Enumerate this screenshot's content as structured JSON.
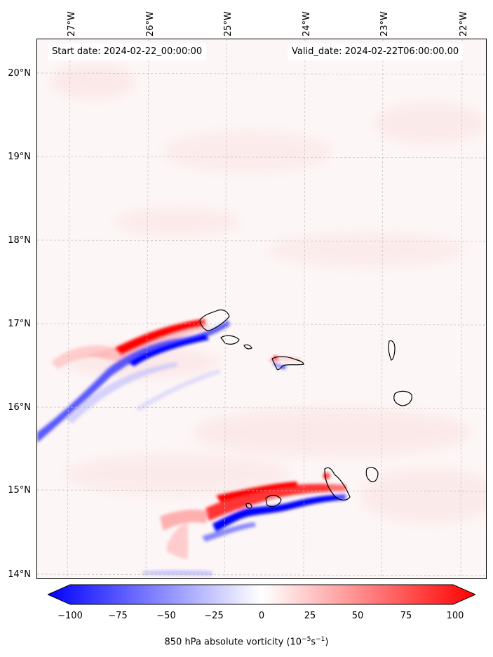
{
  "map": {
    "start_date_text": "Start date: 2024-02-22_00:00:00",
    "valid_date_text": "Valid_date: 2024-02-22T06:00:00.00",
    "longitude_labels": [
      "27°W",
      "26°W",
      "25°W",
      "24°W",
      "23°W",
      "22°W"
    ],
    "latitude_labels": [
      "20°N",
      "19°N",
      "18°N",
      "17°N",
      "16°N",
      "15°N",
      "14°N"
    ],
    "field_colors": {
      "positive": "#ff0000",
      "negative": "#0000ff",
      "neutral": "#ffffff"
    }
  },
  "colorbar": {
    "ticks": [
      "−100",
      "−75",
      "−50",
      "−25",
      "0",
      "25",
      "50",
      "75",
      "100"
    ],
    "label_prefix": "850 hPa absolute vorticity (10",
    "label_exp1": "−5",
    "label_mid": "s",
    "label_exp2": "−1",
    "label_suffix": ")"
  }
}
